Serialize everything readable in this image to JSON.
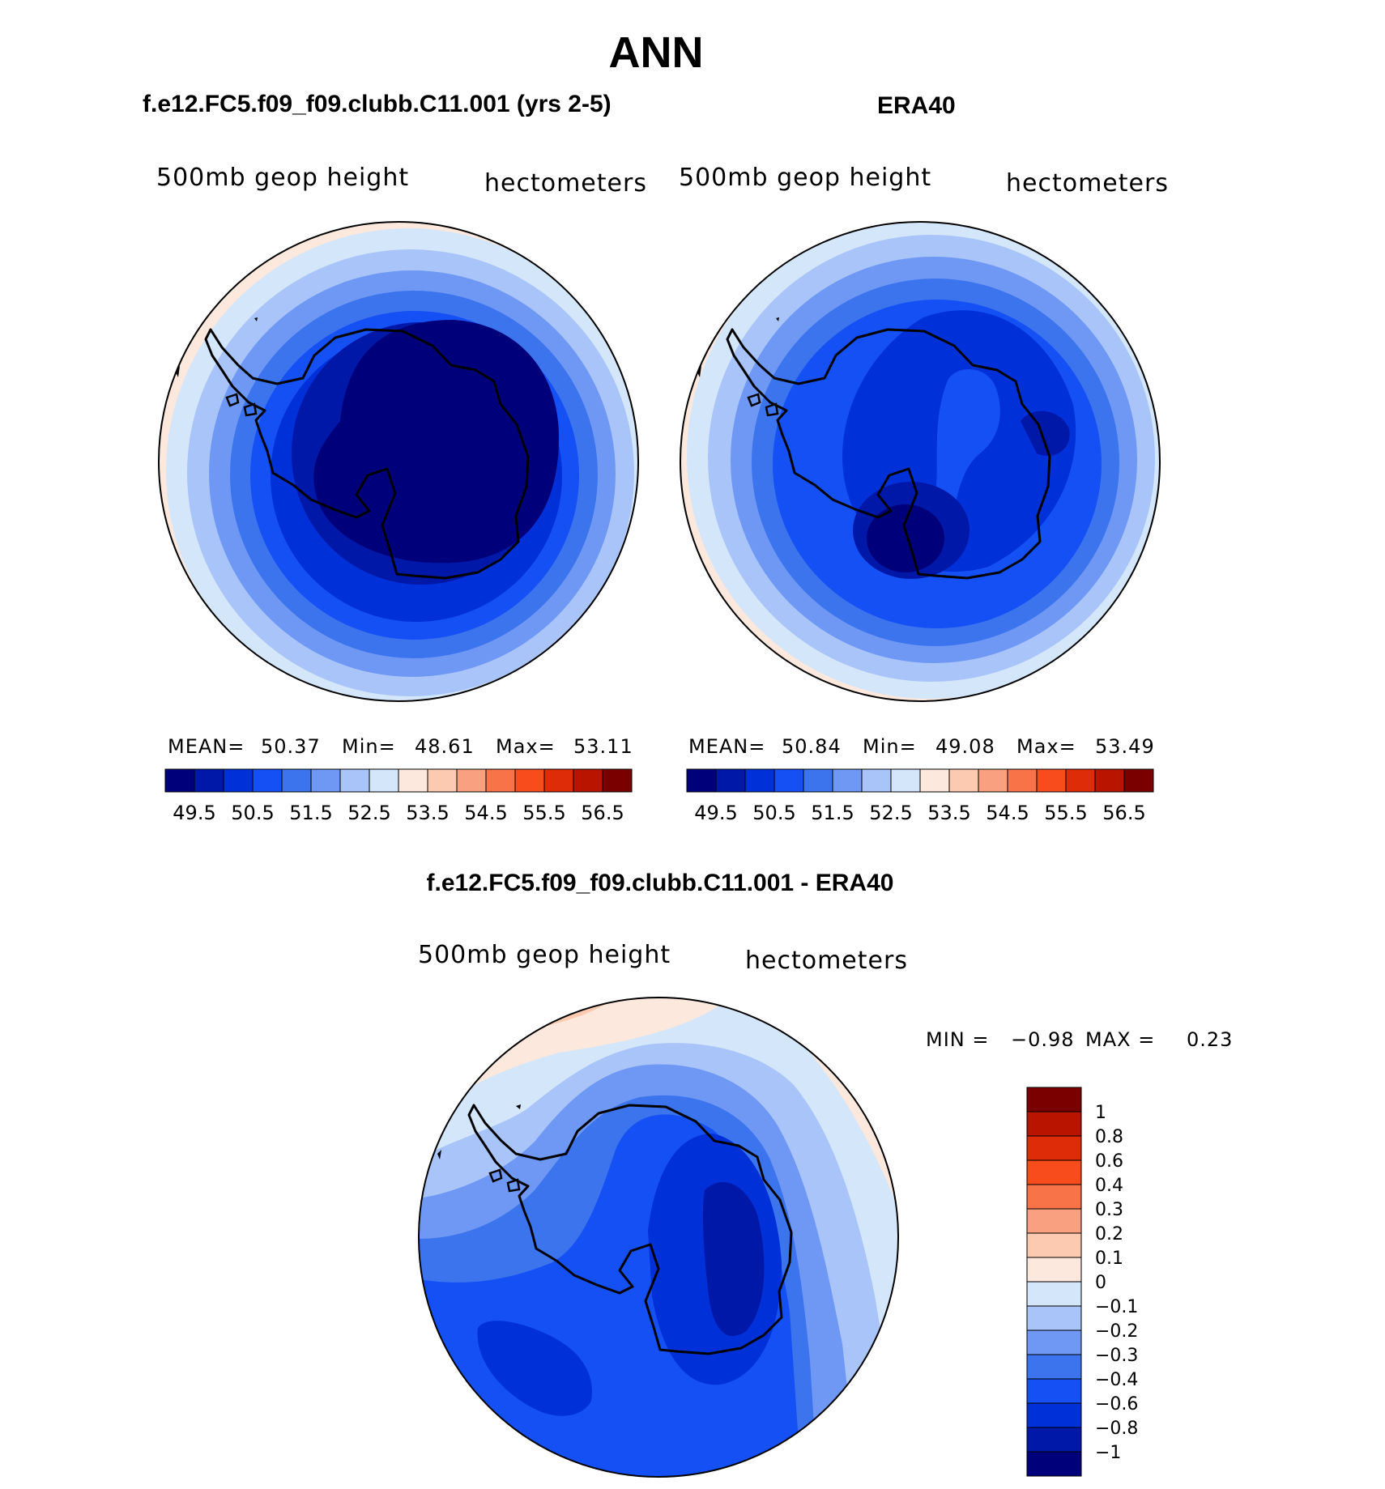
{
  "figure": {
    "title": "ANN",
    "panels": [
      {
        "id": "model",
        "title": "f.e12.FC5.f09_f09.clubb.C11.001 (yrs 2-5)",
        "variable": "500mb geop height",
        "units": "hectometers",
        "stats": {
          "mean_label": "MEAN=",
          "mean": "50.37",
          "min_label": "Min=",
          "min": "48.61",
          "max_label": "Max=",
          "max": "53.11"
        }
      },
      {
        "id": "obs",
        "title": "ERA40",
        "variable": "500mb geop height",
        "units": "hectometers",
        "stats": {
          "mean_label": "MEAN=",
          "mean": "50.84",
          "min_label": "Min=",
          "min": "49.08",
          "max_label": "Max=",
          "max": "53.49"
        }
      }
    ],
    "difference": {
      "title": "f.e12.FC5.f09_f09.clubb.C11.001 - ERA40",
      "variable": "500mb geop height",
      "units": "hectometers",
      "min_label": "MIN =",
      "min": "−0.98",
      "max_label": "MAX =",
      "max": "0.23"
    }
  },
  "chart_data": [
    {
      "type": "heatmap",
      "projection": "south polar stereographic",
      "title": "f.e12.FC5.f09_f09.clubb.C11.001 (yrs 2-5)",
      "field": "500mb geop height",
      "units": "hectometers",
      "mean": 50.37,
      "min": 48.61,
      "max": 53.11,
      "contour_levels": [
        49.5,
        50,
        50.5,
        51,
        51.5,
        52,
        52.5,
        53,
        53.5,
        54,
        54.5,
        55,
        55.5,
        56,
        56.5
      ],
      "colorbar_tick_labels": [
        "49.5",
        "50.5",
        "51.5",
        "52.5",
        "53.5",
        "54.5",
        "55.5",
        "56.5"
      ],
      "colors": [
        "#00007a",
        "#0018a8",
        "#0030d8",
        "#1450f4",
        "#3c74ee",
        "#6e98f4",
        "#a8c4f8",
        "#d4e6fa",
        "#fce8dc",
        "#fccab0",
        "#f8a080",
        "#f87448",
        "#f84c1c",
        "#de2c08",
        "#b81400",
        "#7a0000"
      ]
    },
    {
      "type": "heatmap",
      "projection": "south polar stereographic",
      "title": "ERA40",
      "field": "500mb geop height",
      "units": "hectometers",
      "mean": 50.84,
      "min": 49.08,
      "max": 53.49,
      "contour_levels": [
        49.5,
        50,
        50.5,
        51,
        51.5,
        52,
        52.5,
        53,
        53.5,
        54,
        54.5,
        55,
        55.5,
        56,
        56.5
      ],
      "colorbar_tick_labels": [
        "49.5",
        "50.5",
        "51.5",
        "52.5",
        "53.5",
        "54.5",
        "55.5",
        "56.5"
      ],
      "colors": [
        "#00007a",
        "#0018a8",
        "#0030d8",
        "#1450f4",
        "#3c74ee",
        "#6e98f4",
        "#a8c4f8",
        "#d4e6fa",
        "#fce8dc",
        "#fccab0",
        "#f8a080",
        "#f87448",
        "#f84c1c",
        "#de2c08",
        "#b81400",
        "#7a0000"
      ]
    },
    {
      "type": "heatmap",
      "projection": "south polar stereographic",
      "title": "f.e12.FC5.f09_f09.clubb.C11.001 - ERA40",
      "field": "500mb geop height",
      "units": "hectometers",
      "min": -0.98,
      "max": 0.23,
      "contour_levels": [
        -1,
        -0.8,
        -0.6,
        -0.4,
        -0.3,
        -0.2,
        -0.1,
        0,
        0.1,
        0.2,
        0.3,
        0.4,
        0.6,
        0.8,
        1
      ],
      "colorbar_tick_labels": [
        "1",
        "0.8",
        "0.6",
        "0.4",
        "0.3",
        "0.2",
        "0.1",
        "0",
        "−0.1",
        "−0.2",
        "−0.3",
        "−0.4",
        "−0.6",
        "−0.8",
        "−1"
      ],
      "colors": [
        "#7a0000",
        "#b81400",
        "#de2c08",
        "#f84c1c",
        "#f87448",
        "#f8a080",
        "#fccab0",
        "#fce8dc",
        "#d4e6fa",
        "#a8c4f8",
        "#6e98f4",
        "#3c74ee",
        "#1450f4",
        "#0030d8",
        "#0018a8",
        "#00007a"
      ]
    }
  ]
}
